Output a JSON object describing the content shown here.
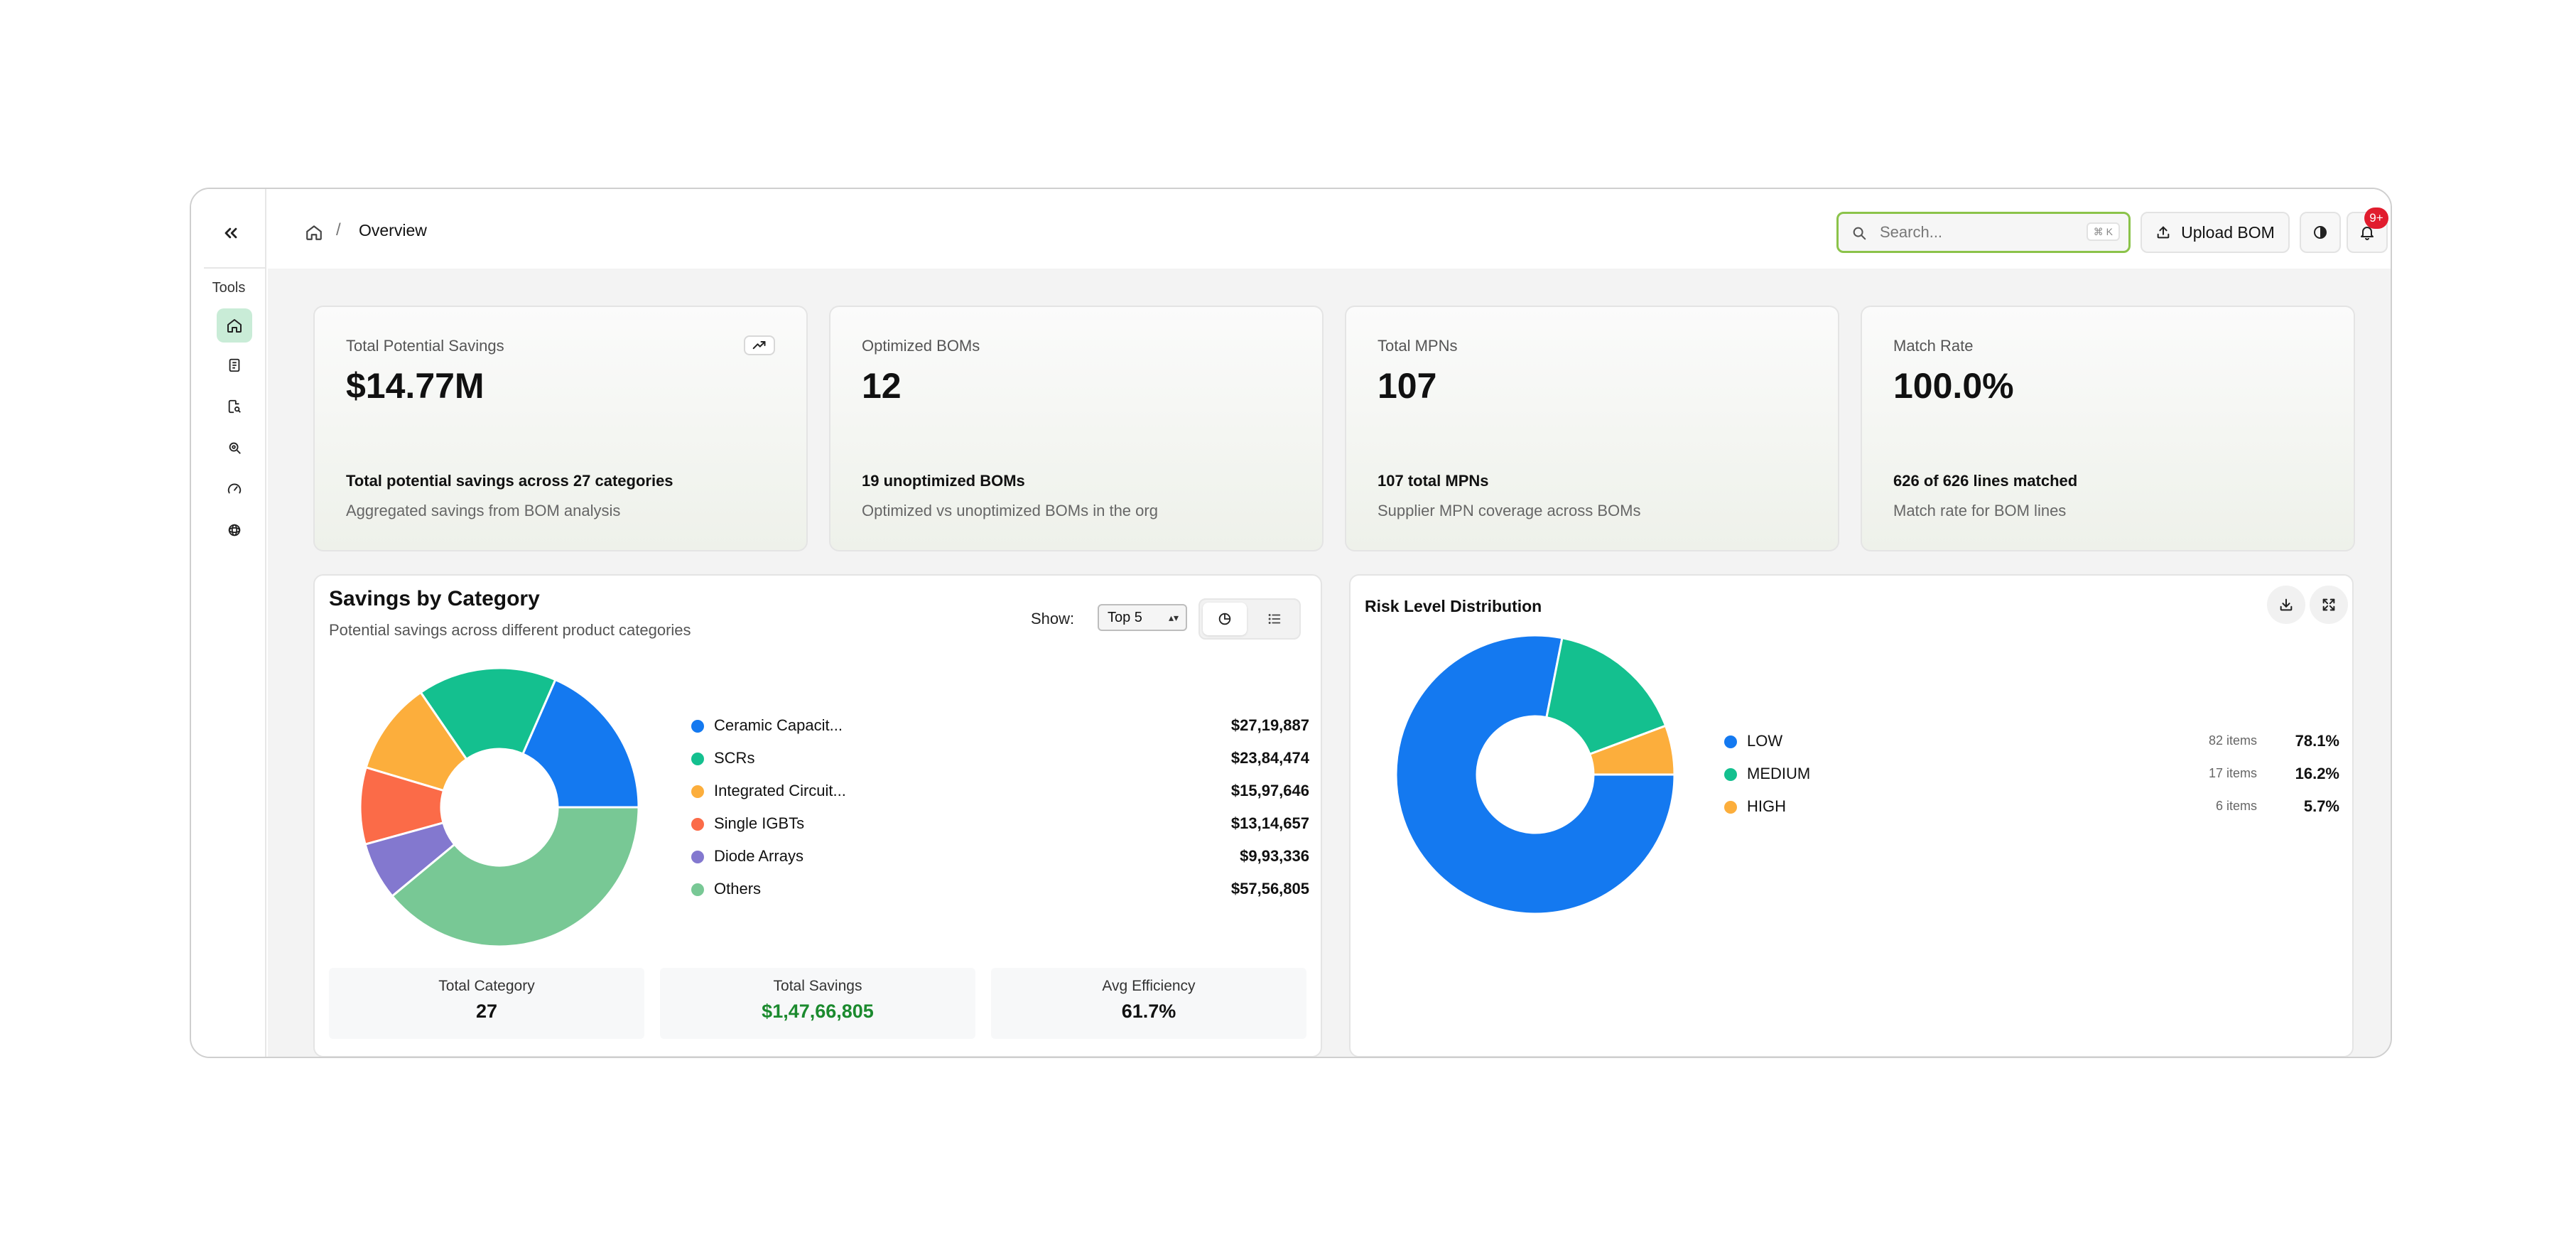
{
  "sidebar": {
    "collapse_icon": "double-chevron-left-icon",
    "section_label": "Tools",
    "items": [
      {
        "name": "home",
        "icon": "home-icon",
        "active": true
      },
      {
        "name": "document",
        "icon": "document-icon",
        "active": false
      },
      {
        "name": "file-search",
        "icon": "file-search-icon",
        "active": false
      },
      {
        "name": "settings-search",
        "icon": "gear-search-icon",
        "active": false
      },
      {
        "name": "gauge",
        "icon": "gauge-icon",
        "active": false
      },
      {
        "name": "ai",
        "icon": "openai-icon",
        "active": false
      }
    ]
  },
  "header": {
    "breadcrumb_sep": "/",
    "breadcrumb_page": "Overview",
    "search_placeholder": "Search...",
    "search_shortcut": "⌘ K",
    "upload_label": "Upload BOM",
    "notification_badge": "9+"
  },
  "stats": [
    {
      "title": "Total Potential Savings",
      "value": "$14.77M",
      "line1": "Total potential savings across 27 categories",
      "line2": "Aggregated savings from BOM analysis",
      "trend_icon": "trending-up-icon"
    },
    {
      "title": "Optimized BOMs",
      "value": "12",
      "line1": "19 unoptimized BOMs",
      "line2": "Optimized vs unoptimized BOMs in the org"
    },
    {
      "title": "Total MPNs",
      "value": "107",
      "line1": "107 total MPNs",
      "line2": "Supplier MPN coverage across BOMs"
    },
    {
      "title": "Match Rate",
      "value": "100.0%",
      "line1": "626 of 626 lines matched",
      "line2": "Match rate for BOM lines"
    }
  ],
  "savings": {
    "title": "Savings by Category",
    "subtitle": "Potential savings across different product categories",
    "show_label": "Show:",
    "show_value": "Top 5",
    "summary": [
      {
        "label": "Total Category",
        "value": "27"
      },
      {
        "label": "Total Savings",
        "value": "$1,47,66,805"
      },
      {
        "label": "Avg Efficiency",
        "value": "61.7%"
      }
    ]
  },
  "risk": {
    "title": "Risk Level Distribution"
  },
  "chart_data": [
    {
      "type": "pie",
      "categories": [
        "Ceramic Capacit...",
        "SCRs",
        "Integrated Circuit...",
        "Single IGBTs",
        "Diode Arrays",
        "Others"
      ],
      "labels": [
        "$27,19,887",
        "$23,84,474",
        "$15,97,646",
        "$13,14,657",
        "$9,93,336",
        "$57,56,805"
      ],
      "values": [
        2719887,
        2384474,
        1597646,
        1314657,
        993336,
        5756805
      ],
      "colors": [
        "#1479f0",
        "#14c08f",
        "#fcae3c",
        "#fb6b48",
        "#8378cf",
        "#78c895"
      ],
      "donut": true
    },
    {
      "type": "pie",
      "categories": [
        "LOW",
        "MEDIUM",
        "HIGH"
      ],
      "counts": [
        "82 items",
        "17 items",
        "6 items"
      ],
      "labels": [
        "78.1%",
        "16.2%",
        "5.7%"
      ],
      "values": [
        78.1,
        16.2,
        5.7
      ],
      "colors": [
        "#1479f0",
        "#14c08f",
        "#fcae3c"
      ],
      "donut": true
    }
  ]
}
